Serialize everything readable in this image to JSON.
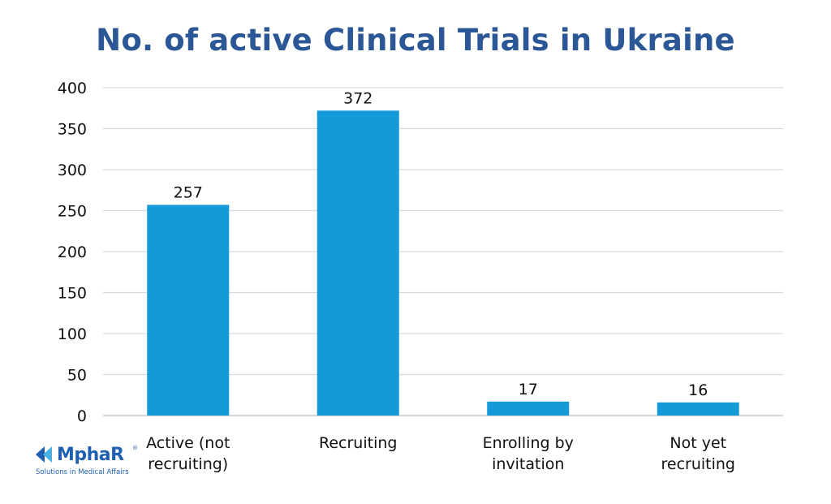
{
  "chart_data": {
    "type": "bar",
    "title": "No. of active Clinical Trials in Ukraine",
    "categories": [
      [
        "Active (not",
        "recruiting)"
      ],
      [
        "Recruiting"
      ],
      [
        "Enrolling by",
        "invitation"
      ],
      [
        "Not yet",
        "recruiting"
      ]
    ],
    "values": [
      257,
      372,
      17,
      16
    ],
    "data_labels": [
      "257",
      "372",
      "17",
      "16"
    ],
    "ylim": [
      0,
      400
    ],
    "yticks": [
      0,
      50,
      100,
      150,
      200,
      250,
      300,
      350,
      400
    ],
    "grid": true,
    "xlabel": "",
    "ylabel": "",
    "colors": {
      "bar": "#159ad9",
      "grid": "#d9d9d9",
      "title": "#2b5797"
    }
  },
  "logo": {
    "name": "MphaR",
    "registered": "®",
    "tagline": "Solutions in Medical Affairs",
    "colors": [
      "#1f5fb0",
      "#4ab0e4"
    ]
  }
}
